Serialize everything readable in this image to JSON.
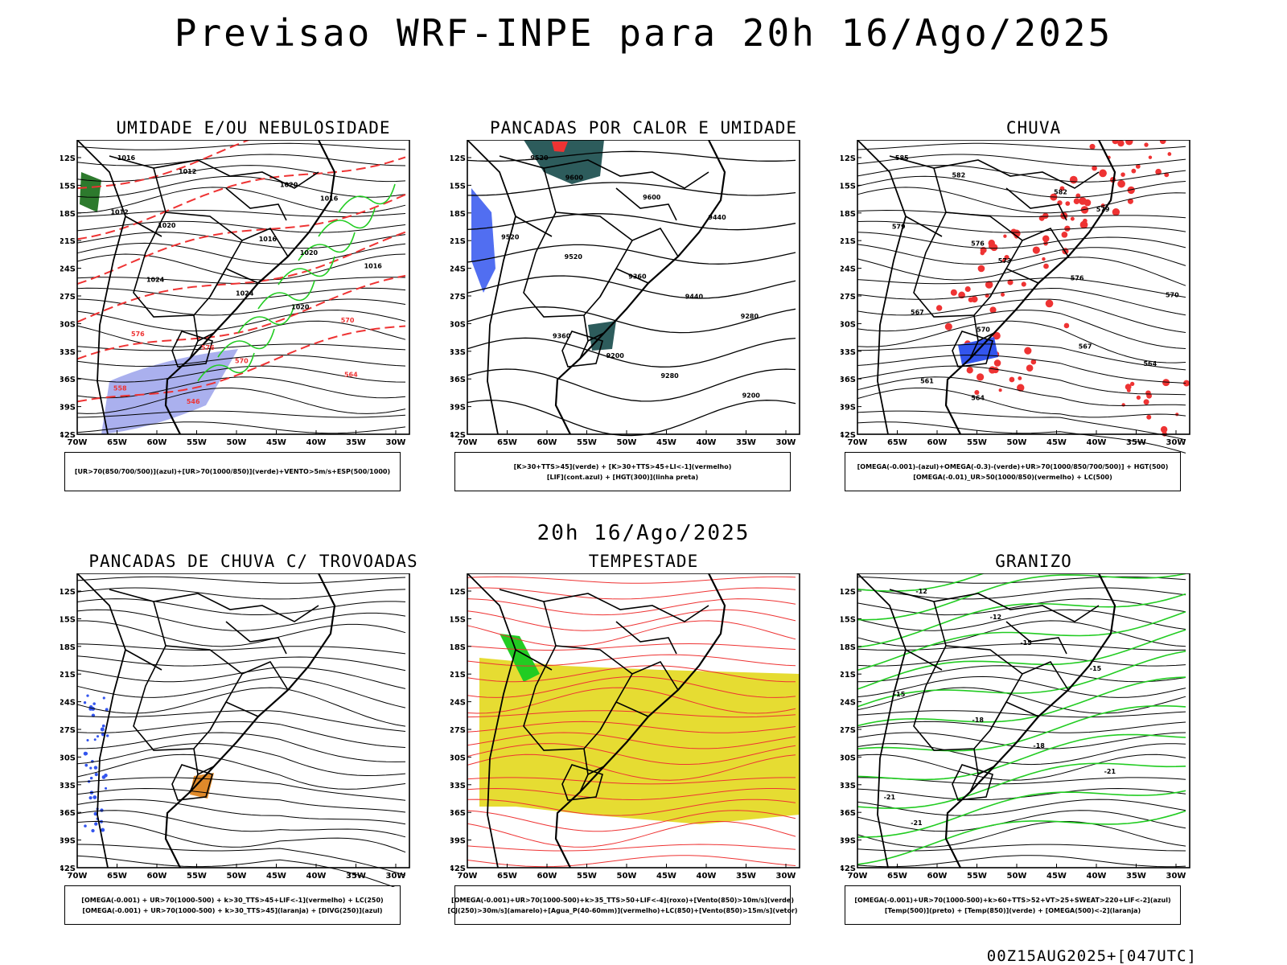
{
  "title": "Previsao WRF-INPE  para 20h 16/Ago/2025",
  "mid_title": "20h 16/Ago/2025",
  "footer": "00Z15AUG2025+[047UTC]",
  "axes": {
    "lat_labels": [
      "12S",
      "15S",
      "18S",
      "21S",
      "24S",
      "27S",
      "30S",
      "33S",
      "36S",
      "39S",
      "42S"
    ],
    "lon_labels": [
      "70W",
      "65W",
      "60W",
      "55W",
      "50W",
      "45W",
      "40W",
      "35W",
      "30W"
    ]
  },
  "panels": [
    {
      "title": "UMIDADE E/OU NEBULOSIDADE",
      "legend": [
        "[UR>70(850/700/500)](azul)+[UR>70(1000/850)](verde)+VENTO>5m/s+ESP(500/1000)"
      ],
      "contour_labels": [
        "1016",
        "1012",
        "1020",
        "1016",
        "1012",
        "1020",
        "1016",
        "1020",
        "1016",
        "1024",
        "1024",
        "1020",
        "570",
        "576",
        "576",
        "570",
        "564",
        "558",
        "546"
      ]
    },
    {
      "title": "PANCADAS POR CALOR E UMIDADE",
      "legend": [
        "[K>30+TTS>45](verde) + [K>30+TTS>45+LI<-1](vermelho)",
        "[LIF](cont.azul) + [HGT(300)](linha preta)"
      ],
      "contour_labels": [
        "9520",
        "9600",
        "9600",
        "9440",
        "9520",
        "9520",
        "9360",
        "9440",
        "9280",
        "9360",
        "9200",
        "9280",
        "9200"
      ]
    },
    {
      "title": "CHUVA",
      "legend": [
        "[OMEGA(-0.001)-(azul)+OMEGA(-0.3)-(verde)+UR>70(1000/850/700/500)] + HGT(500)",
        "[OMEGA(-0.01)_UR>50(1000/850)(vermelho) + LC(500)"
      ],
      "contour_labels": [
        "585",
        "582",
        "582",
        "579",
        "579",
        "576",
        "573",
        "576",
        "570",
        "567",
        "570",
        "567",
        "564",
        "561",
        "564"
      ]
    },
    {
      "title": "PANCADAS DE CHUVA C/ TROVOADAS",
      "legend": [
        "[OMEGA(-0.001) + UR>70(1000-500) + k>30_TTS>45+LIF<-1](vermelho) + LC(250)",
        "[OMEGA(-0.001) + UR>70(1000-500) + k>30_TTS>45](laranja) + [DIVG(250)](azul)"
      ],
      "contour_labels": []
    },
    {
      "title": "TEMPESTADE",
      "legend": [
        "[OMEGA(-0.001)+UR>70(1000-500)+k>35_TTS>50+LIF<-4](roxo)+[Vento(850)>10m/s](verde)",
        "[CJ(250)>30m/s](amarelo)+[Agua_P(40-60mm)](vermelho)+LC(850)+[Vento(850)>15m/s](vetor)"
      ],
      "contour_labels": []
    },
    {
      "title": "GRANIZO",
      "legend": [
        "[OMEGA(-0.001)+UR>70(1000-500)+k>60+TTS>52+VT>25+SWEAT>220+LIF<-2](azul)",
        "[Temp(500)](preto) + [Temp(850)](verde) + [OMEGA(500)<-2](laranja)"
      ],
      "contour_labels": [
        "-12",
        "-12",
        "-15",
        "-15",
        "-15",
        "-18",
        "-18",
        "-21",
        "-21",
        "-21"
      ]
    }
  ],
  "colors": {
    "red": "#ee3333",
    "green": "#22cc22",
    "lavender": "#aab0ee",
    "teal": "#2d5c5c",
    "blue": "#3355ee",
    "yellow": "#e6dc32",
    "orange": "#e08a2a"
  }
}
